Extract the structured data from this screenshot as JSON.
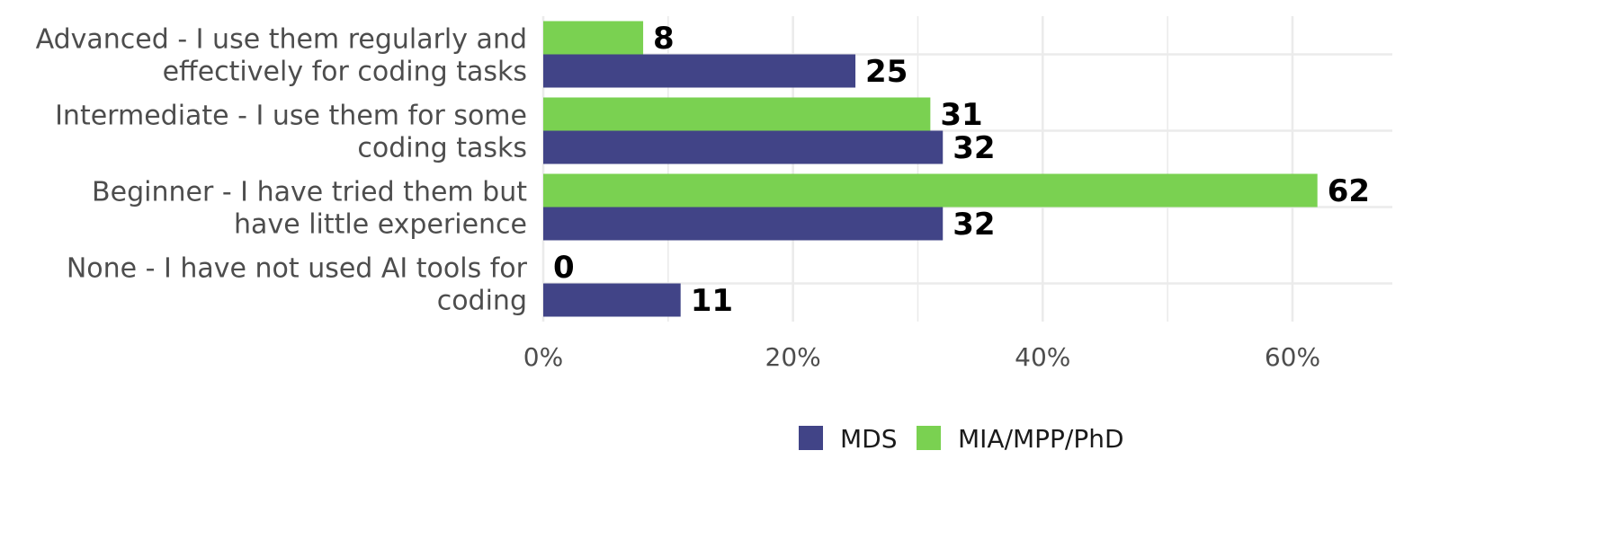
{
  "chart_data": {
    "type": "bar",
    "orientation": "horizontal",
    "categories": [
      [
        "Advanced - I use them regularly and",
        "effectively for coding tasks"
      ],
      [
        "Intermediate - I use them for some",
        "coding tasks"
      ],
      [
        "Beginner - I have tried them but",
        "have little experience"
      ],
      [
        "None - I have not used AI tools for",
        "coding"
      ]
    ],
    "series": [
      {
        "name": "MIA/MPP/PhD",
        "color": "#7ad151",
        "values": [
          8,
          31,
          62,
          0
        ]
      },
      {
        "name": "MDS",
        "color": "#414487",
        "values": [
          25,
          32,
          32,
          11
        ]
      }
    ],
    "xlim": [
      0,
      68
    ],
    "x_ticks": [
      0,
      20,
      40,
      60
    ],
    "x_tick_labels": [
      "0%",
      "20%",
      "40%",
      "60%"
    ],
    "grid": true,
    "legend": {
      "position": "bottom",
      "entries": [
        {
          "name": "MDS",
          "color": "#414487"
        },
        {
          "name": "MIA/MPP/PhD",
          "color": "#7ad151"
        }
      ]
    }
  }
}
